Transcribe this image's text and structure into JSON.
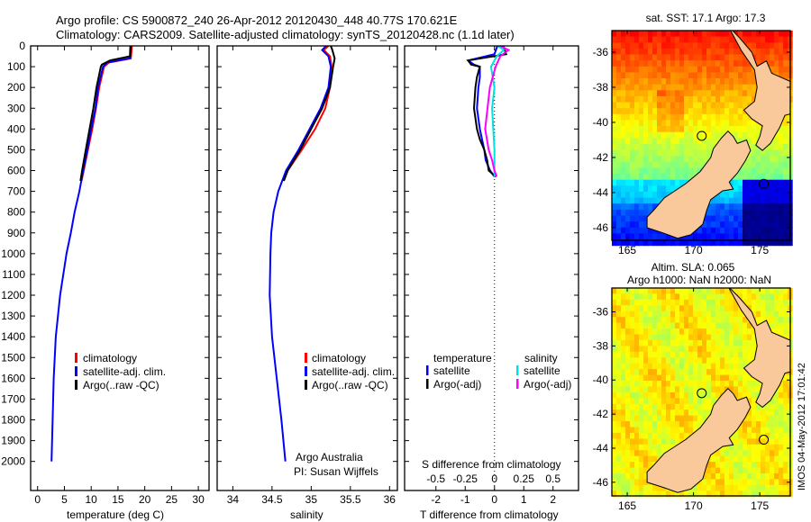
{
  "title": {
    "line1": "Argo profile: CS 5900872_240 26-Apr-2012 20120430_448 40.77S 170.621E",
    "line2": "Climatology: CARS2009. Satellite-adjusted climatology: synTS_20120428.nc (1.1d later)"
  },
  "colors": {
    "climatology": "#ff0000",
    "satellite": "#0000ff",
    "argo": "#000000",
    "s_satellite": "#00e0e0",
    "s_argo": "#ff00ff",
    "land": "#f9c89b"
  },
  "chart_data": [
    {
      "type": "line",
      "name": "temperature",
      "xlabel": "temperature (deg C)",
      "xlim": [
        -1.3,
        32
      ],
      "ylim": [
        0,
        2140
      ],
      "xticks": [
        "0",
        "5",
        "10",
        "15",
        "20",
        "25",
        "30"
      ],
      "yticks": [
        "0",
        "100",
        "200",
        "300",
        "400",
        "500",
        "600",
        "700",
        "800",
        "900",
        "1000",
        "1100",
        "1200",
        "1300",
        "1400",
        "1500",
        "1600",
        "1700",
        "1800",
        "1900",
        "2000"
      ],
      "legend": [
        "climatology",
        "satellite-adj. clim.",
        "Argo(..raw -QC)"
      ],
      "series": [
        {
          "name": "climatology",
          "depth": [
            0,
            60,
            80,
            100,
            200,
            300,
            400,
            500,
            600,
            650
          ],
          "values": [
            17.6,
            17.4,
            13.3,
            12.4,
            11.5,
            10.9,
            10.2,
            9.4,
            8.6,
            8.2
          ]
        },
        {
          "name": "satellite-adj. clim.",
          "depth": [
            0,
            60,
            80,
            100,
            200,
            300,
            400,
            500,
            600,
            700,
            800,
            900,
            1000,
            1200,
            1400,
            1600,
            1800,
            2000
          ],
          "values": [
            17.3,
            17.2,
            13.0,
            12.2,
            11.3,
            10.8,
            10.0,
            9.3,
            8.5,
            7.8,
            6.9,
            6.2,
            5.4,
            4.2,
            3.4,
            3.0,
            2.8,
            2.6
          ]
        },
        {
          "name": "Argo(..raw -QC)",
          "depth": [
            0,
            50,
            70,
            90,
            100,
            200,
            300,
            400,
            500,
            600,
            650
          ],
          "values": [
            17.4,
            17.3,
            13.5,
            12.0,
            11.8,
            11.0,
            10.4,
            9.7,
            9.0,
            8.3,
            8.0
          ]
        }
      ]
    },
    {
      "type": "line",
      "name": "salinity",
      "xlabel": "salinity",
      "xlim": [
        33.8,
        36.1
      ],
      "ylim": [
        0,
        2140
      ],
      "xticks": [
        "34",
        "34.5",
        "35",
        "35.5",
        "36"
      ],
      "legend": [
        "climatology",
        "satellite-adj. clim.",
        "Argo(..raw -QC)"
      ],
      "annotation": [
        "Argo Australia",
        "PI: Susan Wijffels"
      ],
      "series": [
        {
          "name": "climatology",
          "depth": [
            0,
            20,
            50,
            100,
            200,
            300,
            400,
            500,
            600,
            650
          ],
          "values": [
            35.22,
            35.16,
            35.24,
            35.26,
            35.24,
            35.18,
            35.05,
            34.88,
            34.7,
            34.65
          ]
        },
        {
          "name": "satellite-adj. clim.",
          "depth": [
            0,
            20,
            50,
            100,
            200,
            300,
            400,
            500,
            600,
            700,
            800,
            900,
            1000,
            1200,
            1400,
            1600,
            1800,
            2000
          ],
          "values": [
            35.19,
            35.14,
            35.22,
            35.25,
            35.22,
            35.12,
            34.98,
            34.84,
            34.68,
            34.58,
            34.52,
            34.49,
            34.48,
            34.47,
            34.5,
            34.56,
            34.62,
            34.67
          ]
        },
        {
          "name": "Argo(..raw -QC)",
          "depth": [
            0,
            20,
            60,
            100,
            200,
            300,
            400,
            500,
            600,
            650
          ],
          "values": [
            35.25,
            35.27,
            35.3,
            35.28,
            35.24,
            35.14,
            35.0,
            34.86,
            34.7,
            34.65
          ]
        }
      ]
    },
    {
      "type": "line",
      "name": "difference",
      "xlabel": "T difference from climatology",
      "xlabel2": "S difference from climatology",
      "xlim": [
        -3.07,
        2.87
      ],
      "ylim": [
        0,
        2140
      ],
      "xticks": [
        "-2",
        "-1",
        "0",
        "1",
        "2"
      ],
      "xticks2": [
        "-0.5",
        "-0.25",
        "0",
        "0.25",
        "0.5"
      ],
      "legend_headers": [
        "temperature",
        "salinity"
      ],
      "legend": [
        "satellite",
        "Argo(-adj)",
        "satellite",
        "Argo(-adj)"
      ],
      "series": [
        {
          "name": "temperature satellite",
          "depth": [
            0,
            40,
            70,
            90,
            100,
            150,
            200,
            300,
            400,
            500,
            550,
            600,
            630
          ],
          "values": [
            0.1,
            0.0,
            -0.9,
            -0.7,
            -0.5,
            -0.5,
            -0.55,
            -0.6,
            -0.5,
            -0.35,
            -0.3,
            -0.15,
            0.0
          ]
        },
        {
          "name": "temperature Argo(-adj)",
          "depth": [
            0,
            40,
            70,
            90,
            100,
            150,
            200,
            300,
            400,
            450,
            500,
            550,
            600,
            630
          ],
          "values": [
            0.3,
            0.4,
            -0.9,
            -0.8,
            -0.5,
            -0.6,
            -0.65,
            -0.7,
            -0.6,
            -0.5,
            -0.35,
            -0.25,
            -0.2,
            0.05
          ]
        },
        {
          "name": "salinity satellite",
          "depth": [
            0,
            20,
            50,
            100,
            200,
            300,
            400,
            500,
            600,
            630
          ],
          "values": [
            0.03,
            0.08,
            0.02,
            -0.03,
            0.0,
            -0.02,
            -0.01,
            0.0,
            0.0,
            0.0
          ]
        },
        {
          "name": "salinity Argo(-adj)",
          "depth": [
            0,
            20,
            50,
            100,
            200,
            300,
            400,
            500,
            550,
            600,
            630
          ],
          "values": [
            0.05,
            0.12,
            0.05,
            0.01,
            -0.04,
            -0.06,
            -0.08,
            -0.05,
            -0.02,
            0.0,
            0.02
          ]
        }
      ]
    }
  ],
  "maps": [
    {
      "title": "sat. SST: 17.1 Argo: 17.3",
      "lat_ticks": [
        "-36",
        "-38",
        "-40",
        "-42",
        "-44",
        "-46"
      ],
      "lon_ticks": [
        "165",
        "170",
        "175"
      ]
    },
    {
      "title1": "Altim. SLA: 0.065",
      "title2": "Argo h1000: NaN h2000: NaN",
      "lat_ticks": [
        "-36",
        "-38",
        "-40",
        "-42",
        "-44",
        "-46"
      ],
      "lon_ticks": [
        "165",
        "170",
        "175"
      ]
    }
  ],
  "stamp": "IMOS 04-May-2012 17:01:42"
}
